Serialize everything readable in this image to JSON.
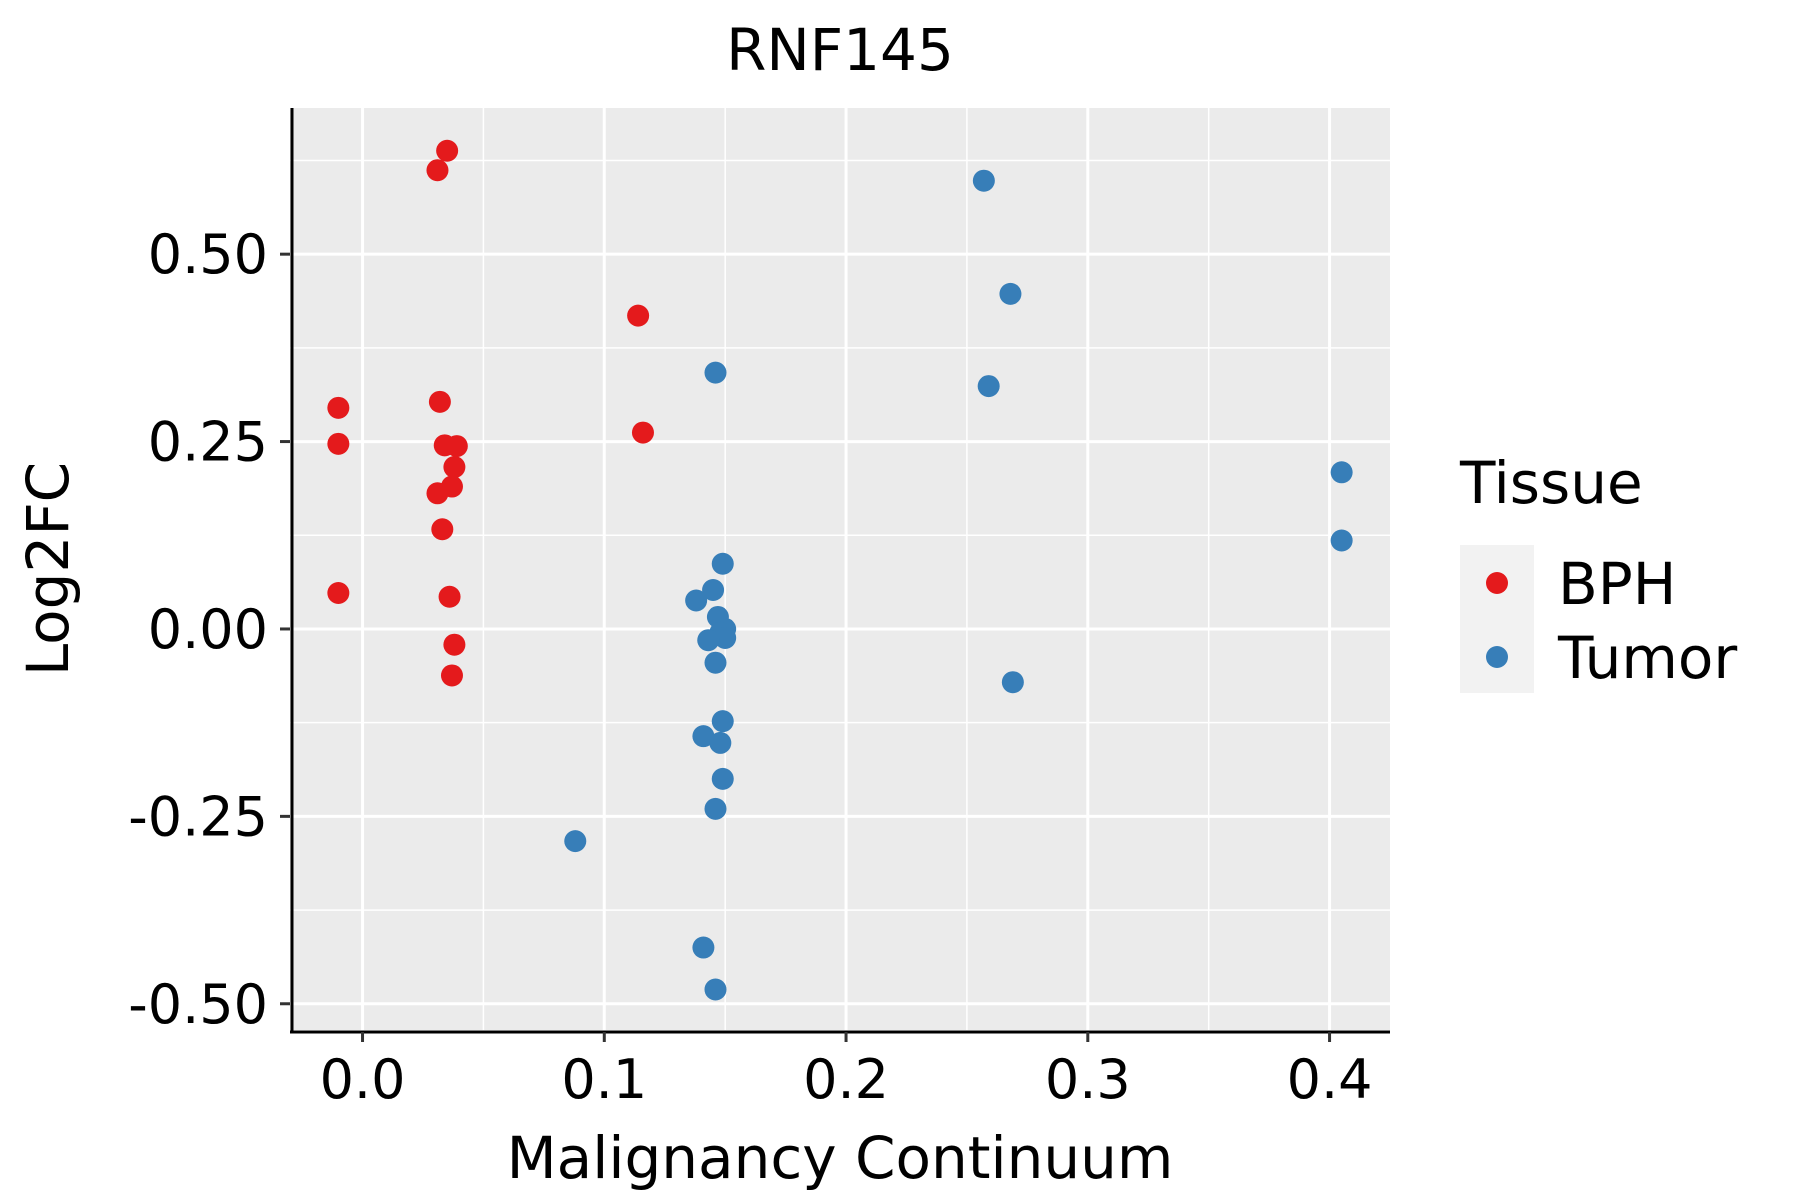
{
  "chart_data": {
    "type": "scatter",
    "title": "RNF145",
    "xlabel": "Malignancy Continuum",
    "ylabel": "Log2FC",
    "xlim": [
      -0.03,
      0.425
    ],
    "ylim": [
      -0.535,
      0.695
    ],
    "x_ticks": [
      0.0,
      0.1,
      0.2,
      0.3,
      0.4
    ],
    "x_tick_labels": [
      "0.0",
      "0.1",
      "0.2",
      "0.3",
      "0.4"
    ],
    "y_ticks": [
      -0.5,
      -0.25,
      0.0,
      0.25,
      0.5
    ],
    "y_tick_labels": [
      "-0.50",
      "-0.25",
      "0.00",
      "0.25",
      "0.50"
    ],
    "grid": true,
    "legend": {
      "title": "Tissue",
      "position": "right",
      "entries": [
        {
          "label": "BPH",
          "color": "#E41A1C"
        },
        {
          "label": "Tumor",
          "color": "#377EB8"
        }
      ]
    },
    "series": [
      {
        "name": "BPH",
        "color": "#E41A1C",
        "points": [
          {
            "x": 0.035,
            "y": 0.638
          },
          {
            "x": 0.031,
            "y": 0.612
          },
          {
            "x": 0.114,
            "y": 0.418
          },
          {
            "x": -0.01,
            "y": 0.295
          },
          {
            "x": 0.032,
            "y": 0.303
          },
          {
            "x": -0.01,
            "y": 0.247
          },
          {
            "x": 0.034,
            "y": 0.245
          },
          {
            "x": 0.039,
            "y": 0.244
          },
          {
            "x": 0.116,
            "y": 0.262
          },
          {
            "x": 0.038,
            "y": 0.216
          },
          {
            "x": 0.037,
            "y": 0.19
          },
          {
            "x": 0.031,
            "y": 0.181
          },
          {
            "x": 0.033,
            "y": 0.133
          },
          {
            "x": -0.01,
            "y": 0.048
          },
          {
            "x": 0.036,
            "y": 0.043
          },
          {
            "x": 0.038,
            "y": -0.021
          },
          {
            "x": 0.037,
            "y": -0.062
          }
        ]
      },
      {
        "name": "Tumor",
        "color": "#377EB8",
        "points": [
          {
            "x": 0.257,
            "y": 0.598
          },
          {
            "x": 0.268,
            "y": 0.447
          },
          {
            "x": 0.146,
            "y": 0.342
          },
          {
            "x": 0.259,
            "y": 0.324
          },
          {
            "x": 0.405,
            "y": 0.209
          },
          {
            "x": 0.405,
            "y": 0.118
          },
          {
            "x": 0.149,
            "y": 0.087
          },
          {
            "x": 0.145,
            "y": 0.052
          },
          {
            "x": 0.138,
            "y": 0.038
          },
          {
            "x": 0.147,
            "y": 0.016
          },
          {
            "x": 0.15,
            "y": 0.0
          },
          {
            "x": 0.148,
            "y": -0.005
          },
          {
            "x": 0.15,
            "y": -0.012
          },
          {
            "x": 0.143,
            "y": -0.015
          },
          {
            "x": 0.146,
            "y": -0.045
          },
          {
            "x": 0.269,
            "y": -0.071
          },
          {
            "x": 0.149,
            "y": -0.123
          },
          {
            "x": 0.141,
            "y": -0.143
          },
          {
            "x": 0.148,
            "y": -0.152
          },
          {
            "x": 0.149,
            "y": -0.2
          },
          {
            "x": 0.146,
            "y": -0.24
          },
          {
            "x": 0.088,
            "y": -0.283
          },
          {
            "x": 0.141,
            "y": -0.425
          },
          {
            "x": 0.146,
            "y": -0.481
          }
        ]
      }
    ]
  }
}
